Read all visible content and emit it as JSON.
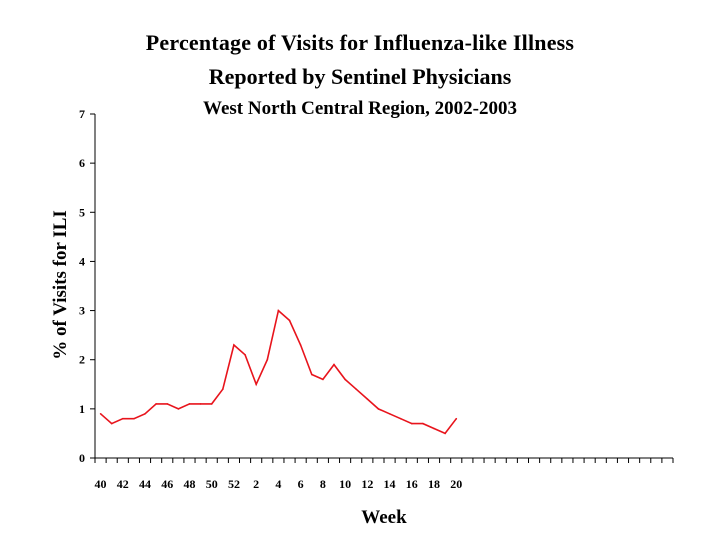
{
  "chart_data": {
    "type": "line",
    "title": "Percentage of Visits for Influenza-like Illness",
    "subtitle": "Reported by Sentinel Physicians",
    "subtitle2": "West North Central Region, 2002-2003",
    "xlabel": "Week",
    "ylabel": "% of Visits for ILI",
    "ylim": [
      0,
      7
    ],
    "yticks": [
      0,
      1,
      2,
      3,
      4,
      5,
      6,
      7
    ],
    "x_weeks": [
      40,
      41,
      42,
      43,
      44,
      45,
      46,
      47,
      48,
      49,
      50,
      51,
      52,
      1,
      2,
      3,
      4,
      5,
      6,
      7,
      8,
      9,
      10,
      11,
      12,
      13,
      14,
      15,
      16,
      17,
      18,
      19,
      20,
      21,
      22,
      23,
      24,
      25,
      26,
      27,
      28,
      29,
      30,
      31,
      32,
      33,
      34,
      35,
      36,
      37,
      38,
      39
    ],
    "x_tick_labels": [
      "40",
      "42",
      "44",
      "46",
      "48",
      "50",
      "52",
      "2",
      "4",
      "6",
      "8",
      "10",
      "12",
      "14",
      "16",
      "18",
      "20"
    ],
    "grid": false,
    "legend": "none",
    "line_color": "#e8141c",
    "series": [
      {
        "x": [
          40,
          41,
          42,
          43,
          44,
          45,
          46,
          47,
          48,
          49,
          50,
          51,
          52,
          1,
          2,
          3,
          4,
          5,
          6,
          7,
          8,
          9,
          10,
          11,
          12,
          13,
          14,
          15,
          16,
          17,
          18,
          19,
          20
        ],
        "values": [
          0.9,
          0.7,
          0.8,
          0.8,
          0.9,
          1.1,
          1.1,
          1.0,
          1.1,
          1.1,
          1.1,
          1.4,
          2.3,
          2.1,
          1.5,
          2.0,
          3.0,
          2.8,
          2.3,
          1.7,
          1.6,
          1.9,
          1.6,
          1.4,
          1.2,
          1.0,
          0.9,
          0.8,
          0.7,
          0.7,
          0.6,
          0.5,
          0.8
        ]
      }
    ]
  }
}
